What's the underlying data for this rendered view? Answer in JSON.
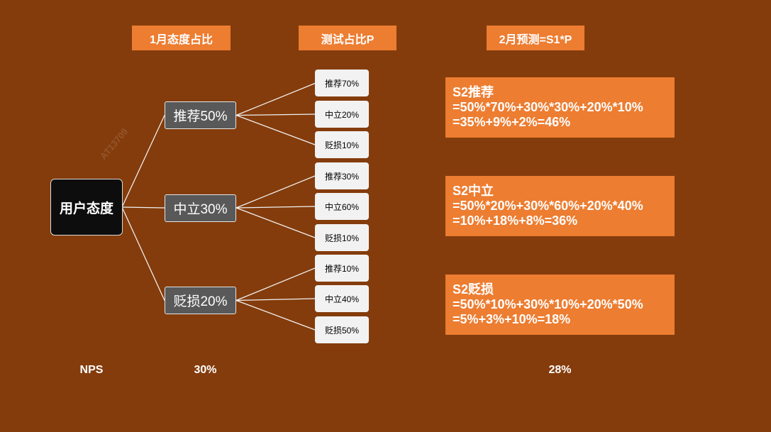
{
  "colors": {
    "background": "#843C0C",
    "accent": "#ED7D31",
    "group_node": "#595959",
    "root_node": "#0D0D0D",
    "leaf_node": "#F2F2F2"
  },
  "headers": {
    "january_share": "1月态度占比",
    "test_share": "测试占比P",
    "february_forecast": "2月预测=S1*P"
  },
  "root": {
    "label": "用户态度"
  },
  "groups": [
    {
      "label": "推荐50%",
      "children": [
        "推荐70%",
        "中立20%",
        "贬损10%"
      ]
    },
    {
      "label": "中立30%",
      "children": [
        "推荐30%",
        "中立60%",
        "贬损10%"
      ]
    },
    {
      "label": "贬损20%",
      "children": [
        "推荐10%",
        "中立40%",
        "贬损50%"
      ]
    }
  ],
  "forecasts": [
    {
      "title": "S2推荐",
      "formula": "=50%*70%+30%*30%+20%*10%",
      "result": "=35%+9%+2%=46%"
    },
    {
      "title": "S2中立",
      "formula": "=50%*20%+30%*60%+20%*40%",
      "result": "=10%+18%+8%=36%"
    },
    {
      "title": "S2贬损",
      "formula": "=50%*10%+30%*10%+20%*50%",
      "result": "=5%+3%+10%=18%"
    }
  ],
  "footer": {
    "label": "NPS",
    "january_value": "30%",
    "february_value": "28%"
  },
  "watermark": "AT13709"
}
